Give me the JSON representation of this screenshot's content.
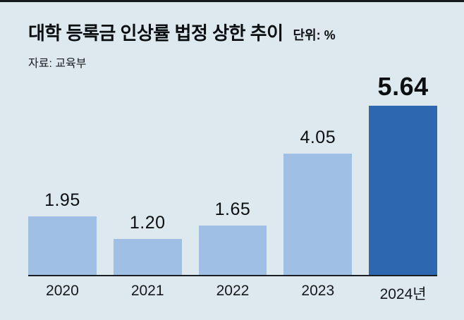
{
  "header": {
    "title": "대학 등록금 인상률 법정 상한 추이",
    "unit_label": "단위: %",
    "source": "자료: 교육부"
  },
  "chart_data": {
    "type": "bar",
    "title": "대학 등록금 인상률 법정 상한 추이",
    "unit_label": "단위: %",
    "source": "자료: 교육부",
    "categories": [
      "2020",
      "2021",
      "2022",
      "2023",
      "2024년"
    ],
    "values": [
      1.95,
      1.2,
      1.65,
      4.05,
      5.64
    ],
    "value_labels": [
      "1.95",
      "1.20",
      "1.65",
      "4.05",
      "5.64"
    ],
    "highlight_index": 4,
    "ylabel": "",
    "xlabel": "",
    "ylim": [
      0,
      6
    ],
    "grid": false,
    "legend": "none",
    "colors": {
      "background": "#dde9ee",
      "bar": "#9fc0e4",
      "bar_highlight": "#2d67b0",
      "baseline": "#1b1f23",
      "text": "#0c0f12"
    }
  }
}
